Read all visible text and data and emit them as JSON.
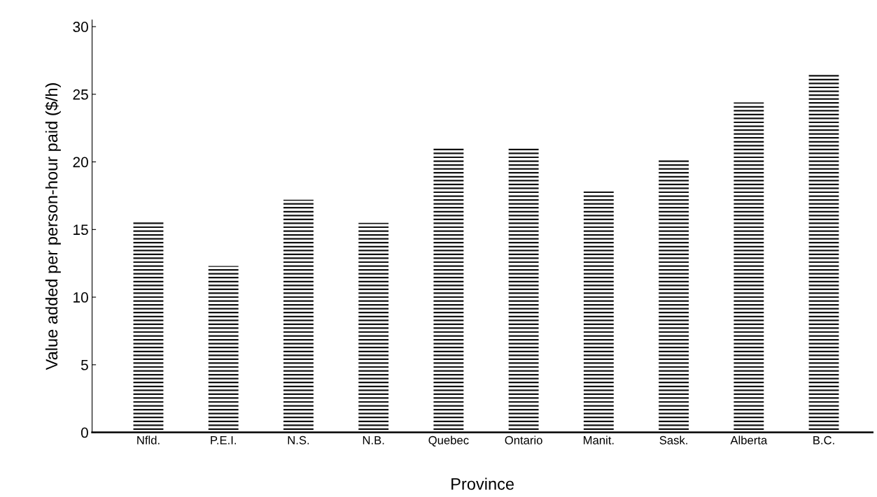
{
  "chart_data": {
    "type": "bar",
    "xlabel": "Province",
    "ylabel": "Value added per person-hour paid ($/h)",
    "categories": [
      "Nfld.",
      "P.E.I.",
      "N.S.",
      "N.B.",
      "Quebec",
      "Ontario",
      "Manit.",
      "Sask.",
      "Alberta",
      "B.C."
    ],
    "values": [
      15.6,
      12.3,
      17.2,
      15.5,
      21.1,
      21.0,
      17.9,
      20.2,
      24.4,
      26.6
    ],
    "color": "#111111",
    "ylim": [
      0,
      30.5
    ],
    "yticks": [
      0,
      5,
      10,
      15,
      20,
      25,
      30
    ],
    "grid": false
  }
}
